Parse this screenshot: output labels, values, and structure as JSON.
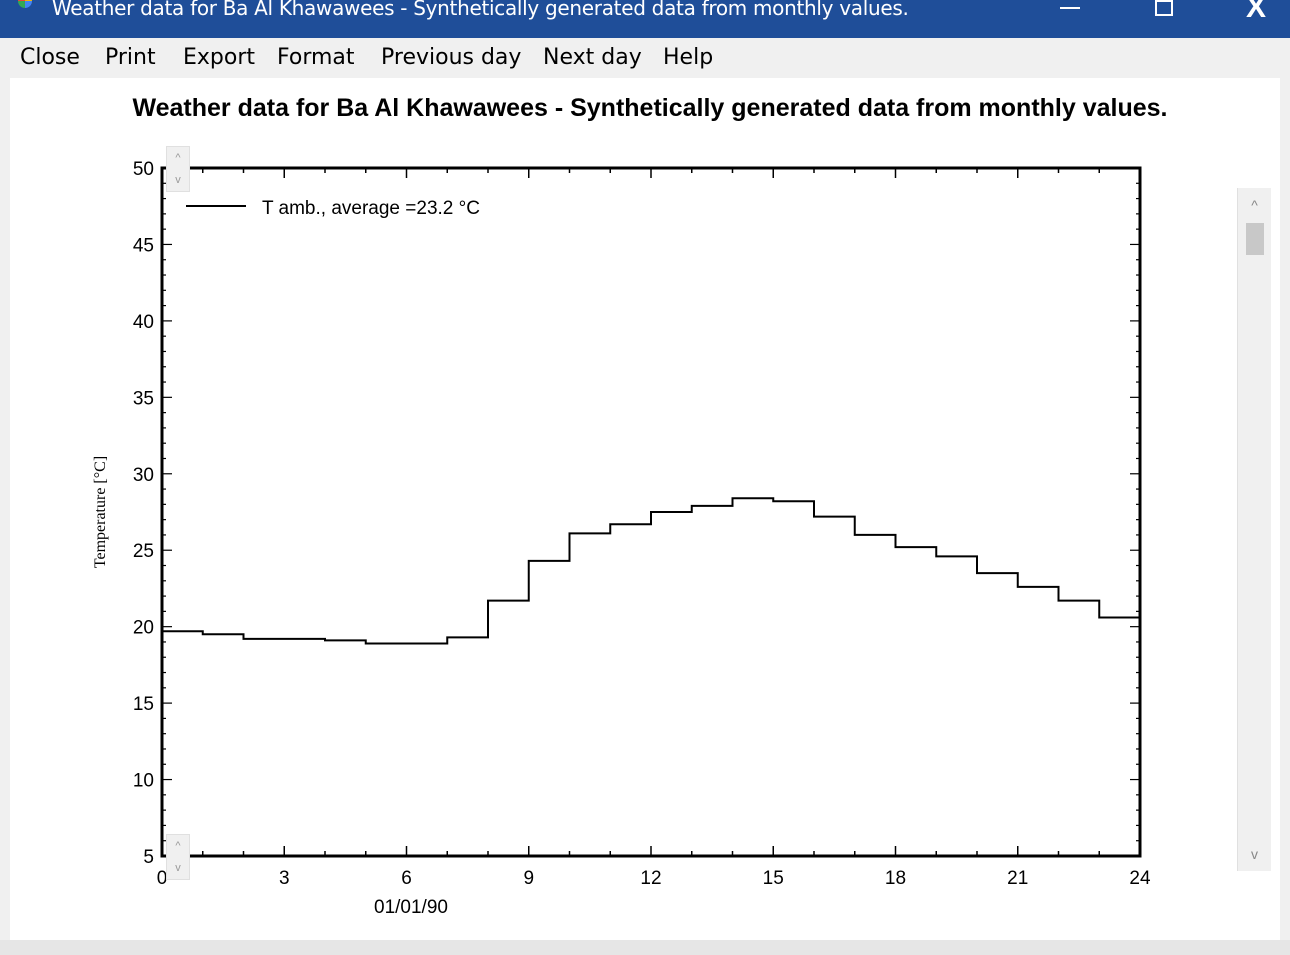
{
  "window": {
    "title": "Weather data for Ba Al Khawawees - Synthetically generated data from monthly values.",
    "minimize_icon": "minimize-icon",
    "maximize_icon": "maximize-icon",
    "close_label": "X"
  },
  "menu": {
    "items": [
      "Close",
      "Print",
      "Export",
      "Format",
      "Previous day",
      "Next day",
      "Help"
    ]
  },
  "scroll": {
    "up": "^",
    "down": "v"
  },
  "chart_data": {
    "type": "line",
    "title": "Weather data for Ba Al Khawawees - Synthetically generated data from monthly values.",
    "xlabel": "01/01/90",
    "ylabel": "Temperature [°C]",
    "xlim": [
      0,
      24
    ],
    "ylim": [
      5,
      50
    ],
    "xticks": [
      0,
      3,
      6,
      9,
      12,
      15,
      18,
      21,
      24
    ],
    "xtick_labels": [
      "0",
      "3",
      "6",
      "9",
      "12",
      "15",
      "18",
      "21",
      "24"
    ],
    "yticks": [
      5,
      10,
      15,
      20,
      25,
      30,
      35,
      40,
      45,
      50
    ],
    "ytick_labels": [
      "5",
      "10",
      "15",
      "20",
      "25",
      "30",
      "35",
      "40",
      "45",
      "50"
    ],
    "legend_position": "top-left",
    "grid": false,
    "series": [
      {
        "name": "T amb., average =23.2 °C",
        "step": true,
        "x": [
          0,
          1,
          2,
          3,
          4,
          5,
          6,
          7,
          8,
          9,
          10,
          11,
          12,
          13,
          14,
          15,
          16,
          17,
          18,
          19,
          20,
          21,
          22,
          23
        ],
        "values": [
          19.7,
          19.5,
          19.2,
          19.2,
          19.1,
          18.9,
          18.9,
          19.3,
          21.7,
          24.3,
          26.1,
          26.7,
          27.5,
          27.9,
          28.4,
          28.2,
          27.2,
          26.0,
          25.2,
          24.6,
          23.5,
          22.6,
          21.7,
          20.6
        ],
        "color": "#000000"
      }
    ]
  }
}
